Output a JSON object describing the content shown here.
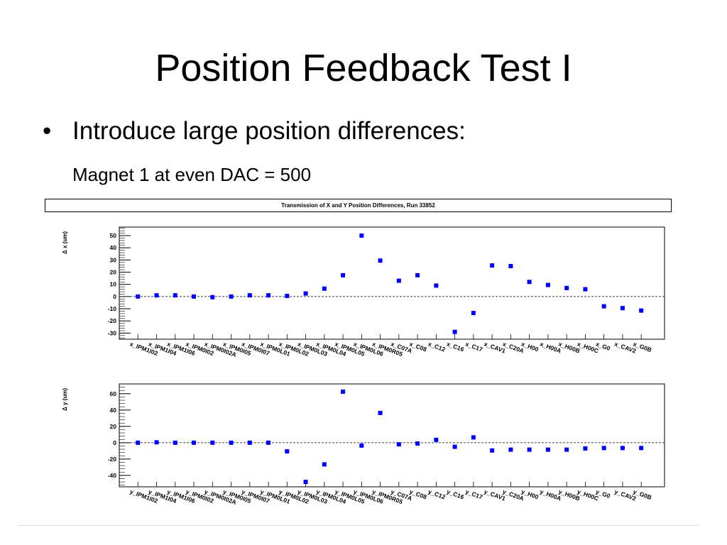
{
  "slide": {
    "title": "Position Feedback Test I",
    "bullet_symbol": "•",
    "bullet": "Introduce large position differences:",
    "subtext": "Magnet 1 at even DAC = 500"
  },
  "plot_title": "Transmission of X and Y Position Differences, Run 33852",
  "colors": {
    "marker": "#0000ff",
    "axis": "#000000",
    "zero_line": "#000000"
  },
  "chart_data": [
    {
      "type": "scatter",
      "ylabel": "Δ x (um)",
      "ylim": [
        -35,
        57
      ],
      "yticks": [
        50,
        40,
        30,
        20,
        10,
        0,
        -10,
        -20,
        -30
      ],
      "categories": [
        "x_IPM1I02",
        "x_IPM1I04",
        "x_IPM1I06",
        "x_IPM0I02",
        "x_IPM0I02A",
        "x_IPM0I05",
        "x_IPM0I07",
        "x_IPM0L01",
        "x_IPM0L02",
        "x_IPM0L03",
        "x_IPM0L04",
        "x_IPM0L05",
        "x_IPM0L06",
        "x_IPM0R05",
        "x_C07A",
        "x_C08",
        "x_C12",
        "x_C16",
        "x_C17",
        "x_CAV1",
        "x_C20A",
        "x_H00",
        "x_H00A",
        "x_H00B",
        "x_H00C",
        "x_G0",
        "x_CAV2",
        "x_G0B"
      ],
      "values": [
        0,
        1,
        1,
        0,
        -0.5,
        0,
        1,
        1,
        0.5,
        2.5,
        6.5,
        17.5,
        50,
        29.5,
        13,
        17.5,
        9,
        -29,
        -13.5,
        25.5,
        25,
        12,
        9.5,
        7,
        6,
        -8,
        -9.5,
        -11.5
      ],
      "zero_line": "dashed"
    },
    {
      "type": "scatter",
      "ylabel": "Δ y (um)",
      "ylim": [
        -54,
        72
      ],
      "yticks": [
        60,
        40,
        20,
        0,
        -20,
        -40
      ],
      "categories": [
        "y_IPM1I02",
        "y_IPM1I04",
        "y_IPM1I06",
        "y_IPM0I02",
        "y_IPM0I02A",
        "y_IPM0I05",
        "y_IPM0I07",
        "y_IPM0L01",
        "y_IPM0L02",
        "y_IPM0L03",
        "y_IPM0L04",
        "y_IPM0L05",
        "y_IPM0L06",
        "y_IPM0R05",
        "y_C07A",
        "y_C08",
        "y_C12",
        "y_C16",
        "y_C17",
        "y_CAV1",
        "y_C20A",
        "y_H00",
        "y_H00A",
        "y_H00B",
        "y_H00C",
        "y_G0",
        "y_CAV2",
        "y_G0B"
      ],
      "values": [
        0,
        0.5,
        0,
        0,
        0,
        0,
        0,
        0,
        -10.5,
        -48,
        -26.5,
        62.5,
        -3.5,
        36.5,
        -2,
        -1,
        3.5,
        -5,
        6.5,
        -9.5,
        -8.5,
        -8.5,
        -8.5,
        -8.5,
        -7,
        -6.5,
        -6.5,
        -6.5
      ],
      "zero_line": "dashed"
    }
  ]
}
